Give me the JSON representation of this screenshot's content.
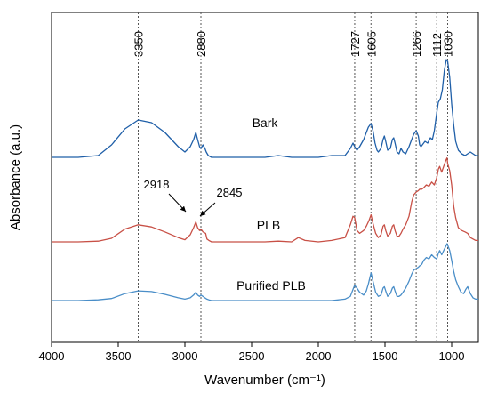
{
  "chart_data": {
    "type": "line",
    "title": "",
    "xlabel": "Wavenumber (cm⁻¹)",
    "ylabel": "Absorbance (a.u.)",
    "xlim": [
      4000,
      800
    ],
    "x_reversed": true,
    "xticks": [
      4000,
      3500,
      3000,
      2500,
      2000,
      1500,
      1000
    ],
    "y_ticks_shown": false,
    "grid": false,
    "legend": "none",
    "reference_lines": [
      {
        "x": 3350,
        "label": "3350"
      },
      {
        "x": 2880,
        "label": "2880"
      },
      {
        "x": 1727,
        "label": "1727"
      },
      {
        "x": 1605,
        "label": "1605"
      },
      {
        "x": 1266,
        "label": "1266"
      },
      {
        "x": 1112,
        "label": "1112"
      },
      {
        "x": 1030,
        "label": "1030"
      }
    ],
    "annotations": [
      {
        "label": "2918",
        "x": 2918,
        "series": "PLB"
      },
      {
        "label": "2845",
        "x": 2845,
        "series": "PLB"
      }
    ],
    "series": [
      {
        "name": "Bark",
        "color": "#1f5fa8",
        "baseline": 0.0,
        "x": [
          4000,
          3800,
          3650,
          3550,
          3450,
          3350,
          3250,
          3150,
          3050,
          3000,
          2960,
          2935,
          2918,
          2905,
          2890,
          2880,
          2865,
          2850,
          2840,
          2825,
          2800,
          2700,
          2600,
          2500,
          2400,
          2300,
          2200,
          2100,
          2000,
          1900,
          1800,
          1760,
          1740,
          1727,
          1710,
          1690,
          1660,
          1640,
          1625,
          1605,
          1590,
          1575,
          1560,
          1550,
          1530,
          1515,
          1505,
          1495,
          1480,
          1460,
          1445,
          1435,
          1425,
          1410,
          1395,
          1380,
          1365,
          1345,
          1320,
          1300,
          1285,
          1266,
          1250,
          1240,
          1230,
          1220,
          1200,
          1180,
          1160,
          1145,
          1130,
          1112,
          1100,
          1085,
          1070,
          1055,
          1040,
          1030,
          1015,
          1000,
          985,
          970,
          950,
          925,
          900,
          880,
          860,
          840,
          820,
          800
        ],
        "y": [
          0.0,
          0.0,
          0.02,
          0.14,
          0.32,
          0.42,
          0.39,
          0.28,
          0.12,
          0.06,
          0.12,
          0.2,
          0.28,
          0.2,
          0.12,
          0.1,
          0.14,
          0.1,
          0.06,
          0.02,
          0.0,
          0.0,
          0.0,
          0.0,
          0.0,
          0.02,
          0.0,
          0.0,
          0.0,
          0.02,
          0.02,
          0.1,
          0.16,
          0.12,
          0.08,
          0.12,
          0.2,
          0.28,
          0.34,
          0.38,
          0.3,
          0.16,
          0.08,
          0.06,
          0.1,
          0.2,
          0.24,
          0.18,
          0.08,
          0.1,
          0.2,
          0.22,
          0.16,
          0.06,
          0.04,
          0.1,
          0.06,
          0.04,
          0.12,
          0.2,
          0.26,
          0.3,
          0.24,
          0.14,
          0.12,
          0.14,
          0.18,
          0.16,
          0.22,
          0.2,
          0.3,
          0.5,
          0.62,
          0.66,
          0.76,
          0.98,
          1.1,
          1.08,
          0.9,
          0.6,
          0.36,
          0.18,
          0.08,
          0.04,
          0.02,
          0.04,
          0.06,
          0.04,
          0.02,
          0.02
        ]
      },
      {
        "name": "PLB",
        "color": "#c85046",
        "baseline": 0.0,
        "x": [
          4000,
          3800,
          3650,
          3550,
          3450,
          3350,
          3250,
          3150,
          3050,
          3000,
          2960,
          2935,
          2918,
          2905,
          2890,
          2880,
          2865,
          2845,
          2835,
          2820,
          2800,
          2700,
          2600,
          2500,
          2400,
          2300,
          2200,
          2150,
          2100,
          2000,
          1900,
          1800,
          1760,
          1740,
          1727,
          1710,
          1690,
          1660,
          1640,
          1620,
          1605,
          1590,
          1570,
          1550,
          1530,
          1515,
          1505,
          1495,
          1480,
          1460,
          1445,
          1435,
          1425,
          1410,
          1395,
          1380,
          1365,
          1345,
          1320,
          1300,
          1285,
          1266,
          1250,
          1240,
          1225,
          1210,
          1190,
          1170,
          1150,
          1130,
          1112,
          1100,
          1090,
          1075,
          1060,
          1045,
          1035,
          1030,
          1015,
          1000,
          985,
          970,
          950,
          925,
          900,
          880,
          860,
          840,
          820,
          800
        ],
        "y": [
          0.0,
          0.0,
          0.01,
          0.05,
          0.18,
          0.24,
          0.21,
          0.14,
          0.06,
          0.03,
          0.1,
          0.2,
          0.28,
          0.2,
          0.16,
          0.18,
          0.14,
          0.12,
          0.04,
          0.02,
          0.0,
          0.0,
          0.0,
          0.0,
          0.0,
          0.01,
          0.0,
          0.06,
          0.02,
          0.0,
          0.02,
          0.06,
          0.24,
          0.36,
          0.34,
          0.16,
          0.12,
          0.16,
          0.22,
          0.3,
          0.38,
          0.26,
          0.12,
          0.06,
          0.1,
          0.22,
          0.24,
          0.16,
          0.08,
          0.12,
          0.22,
          0.24,
          0.16,
          0.08,
          0.08,
          0.12,
          0.18,
          0.24,
          0.36,
          0.56,
          0.66,
          0.7,
          0.72,
          0.74,
          0.74,
          0.76,
          0.8,
          0.78,
          0.84,
          0.8,
          0.9,
          1.02,
          1.06,
          0.98,
          1.06,
          1.14,
          1.18,
          1.1,
          1.0,
          0.8,
          0.5,
          0.34,
          0.2,
          0.16,
          0.14,
          0.12,
          0.06,
          0.04,
          0.02,
          0.02
        ]
      },
      {
        "name": "Purified PLB",
        "color": "#4a8ec8",
        "baseline": 0.0,
        "x": [
          4000,
          3800,
          3650,
          3550,
          3450,
          3350,
          3250,
          3150,
          3050,
          3000,
          2960,
          2935,
          2918,
          2905,
          2890,
          2880,
          2865,
          2850,
          2835,
          2820,
          2800,
          2700,
          2600,
          2500,
          2400,
          2300,
          2200,
          2100,
          2000,
          1900,
          1800,
          1760,
          1740,
          1727,
          1710,
          1690,
          1660,
          1640,
          1625,
          1605,
          1590,
          1570,
          1550,
          1530,
          1515,
          1505,
          1495,
          1480,
          1460,
          1445,
          1435,
          1425,
          1410,
          1395,
          1380,
          1365,
          1345,
          1320,
          1300,
          1285,
          1266,
          1250,
          1240,
          1225,
          1210,
          1190,
          1170,
          1150,
          1130,
          1112,
          1100,
          1090,
          1075,
          1060,
          1045,
          1035,
          1030,
          1015,
          1000,
          985,
          970,
          950,
          930,
          910,
          895,
          880,
          860,
          840,
          820,
          800
        ],
        "y": [
          0.0,
          0.0,
          0.01,
          0.03,
          0.1,
          0.14,
          0.13,
          0.09,
          0.04,
          0.02,
          0.04,
          0.08,
          0.12,
          0.08,
          0.06,
          0.08,
          0.06,
          0.04,
          0.02,
          0.01,
          0.0,
          0.0,
          0.0,
          0.0,
          0.0,
          0.0,
          0.0,
          0.0,
          0.0,
          0.0,
          0.02,
          0.06,
          0.16,
          0.22,
          0.18,
          0.12,
          0.08,
          0.14,
          0.24,
          0.4,
          0.28,
          0.12,
          0.06,
          0.08,
          0.18,
          0.2,
          0.14,
          0.06,
          0.1,
          0.18,
          0.2,
          0.14,
          0.06,
          0.06,
          0.08,
          0.12,
          0.18,
          0.28,
          0.38,
          0.44,
          0.46,
          0.48,
          0.5,
          0.52,
          0.58,
          0.62,
          0.6,
          0.66,
          0.62,
          0.6,
          0.68,
          0.72,
          0.66,
          0.72,
          0.78,
          0.82,
          0.8,
          0.72,
          0.58,
          0.42,
          0.3,
          0.2,
          0.12,
          0.1,
          0.16,
          0.2,
          0.1,
          0.04,
          0.02,
          0.02
        ]
      }
    ]
  }
}
